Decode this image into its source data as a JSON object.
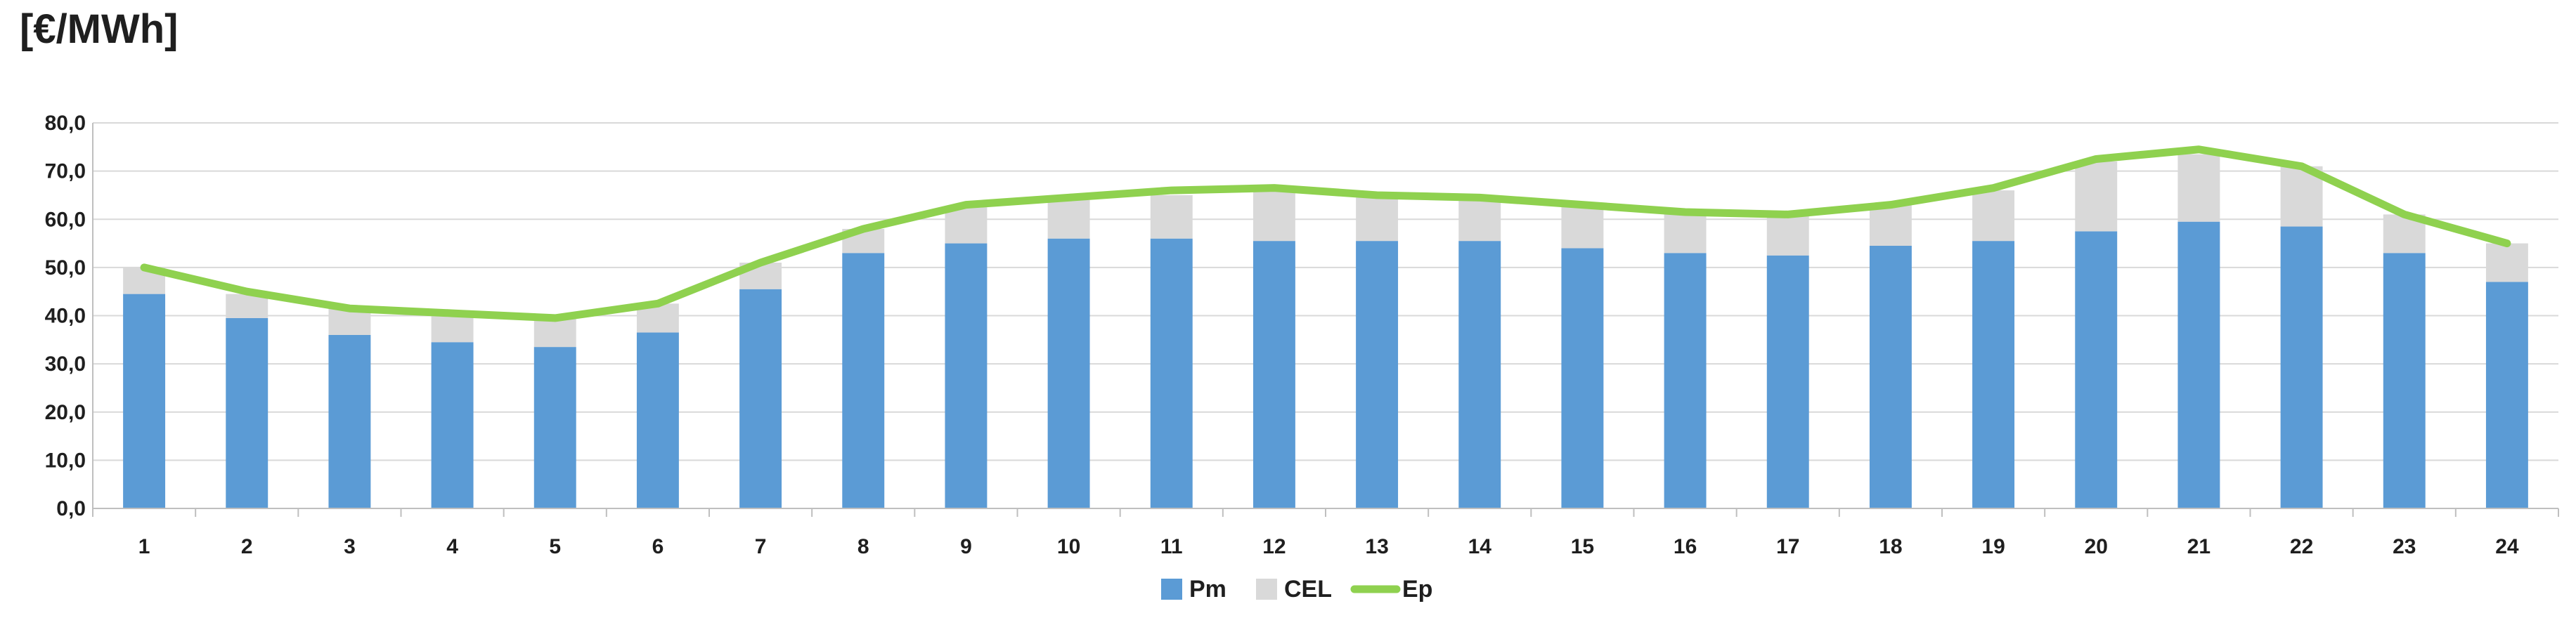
{
  "chart_data": {
    "type": "bar",
    "stacked": true,
    "unit_label": "[€/MWh]",
    "categories": [
      "1",
      "2",
      "3",
      "4",
      "5",
      "6",
      "7",
      "8",
      "9",
      "10",
      "11",
      "12",
      "13",
      "14",
      "15",
      "16",
      "17",
      "18",
      "19",
      "20",
      "21",
      "22",
      "23",
      "24"
    ],
    "series": [
      {
        "name": "Pm",
        "kind": "bar",
        "color": "#5b9bd5",
        "values": [
          44.5,
          39.5,
          36.0,
          34.5,
          33.5,
          36.5,
          45.5,
          53.0,
          55.0,
          56.0,
          56.0,
          55.5,
          55.5,
          55.5,
          54.0,
          53.0,
          52.5,
          54.5,
          55.5,
          57.5,
          59.5,
          58.5,
          53.0,
          47.0
        ]
      },
      {
        "name": "CEL",
        "kind": "bar",
        "color": "#d9d9d9",
        "values": [
          5.5,
          5.0,
          5.5,
          6.0,
          6.0,
          6.0,
          5.5,
          5.0,
          7.5,
          8.0,
          9.0,
          10.5,
          9.0,
          9.0,
          9.0,
          8.5,
          8.5,
          8.5,
          10.5,
          14.5,
          14.0,
          12.5,
          8.0,
          8.0
        ]
      },
      {
        "name": "Ep",
        "kind": "line",
        "color": "#8fd14f",
        "values": [
          50.0,
          45.0,
          41.5,
          40.5,
          39.5,
          42.5,
          51.0,
          58.0,
          63.0,
          64.5,
          66.0,
          66.5,
          65.0,
          64.5,
          63.0,
          61.5,
          61.0,
          63.0,
          66.5,
          72.5,
          74.5,
          71.0,
          61.0,
          55.0
        ]
      }
    ],
    "yticks": [
      "0,0",
      "10,0",
      "20,0",
      "30,0",
      "40,0",
      "50,0",
      "60,0",
      "70,0",
      "80,0"
    ],
    "ylim": [
      0,
      80
    ],
    "grid": true,
    "legend_position": "bottom-center"
  }
}
